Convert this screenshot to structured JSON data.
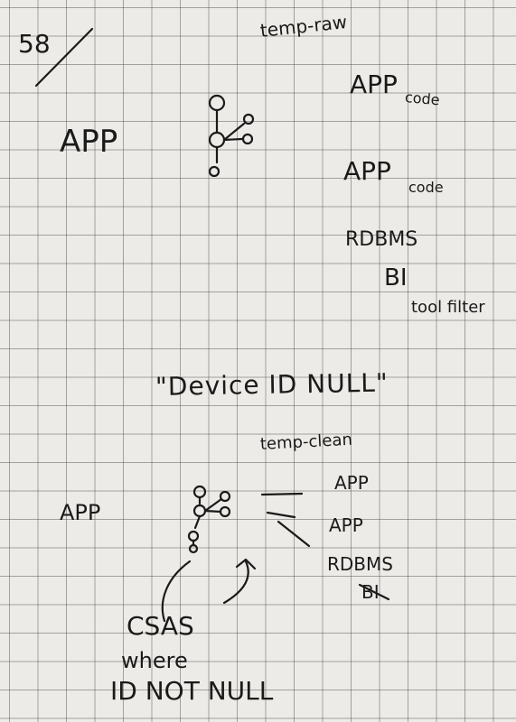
{
  "page": {
    "number": "58",
    "background_color": "#ecebe7",
    "ink_color": "#1a1a1a"
  },
  "upper_diagram": {
    "source_label": "APP",
    "table_label": "temp-raw",
    "targets": [
      {
        "name": "APP",
        "note": "code"
      },
      {
        "name": "APP",
        "note": "code"
      },
      {
        "name": "RDBMS",
        "note": ""
      },
      {
        "name": "BI",
        "note": "tool filter"
      }
    ]
  },
  "quote": "\"Device ID NULL\"",
  "lower_diagram": {
    "source_label": "APP",
    "table_label": "temp-clean",
    "targets": [
      "APP",
      "APP",
      "RDBMS",
      "BI"
    ]
  },
  "condition": {
    "lines": [
      "CSAS",
      "where",
      "ID NOT NULL"
    ]
  },
  "icons": [
    "kafka-cluster-icon",
    "kafka-cluster-icon",
    "strike-mark-icon",
    "curved-arrow-icon"
  ]
}
